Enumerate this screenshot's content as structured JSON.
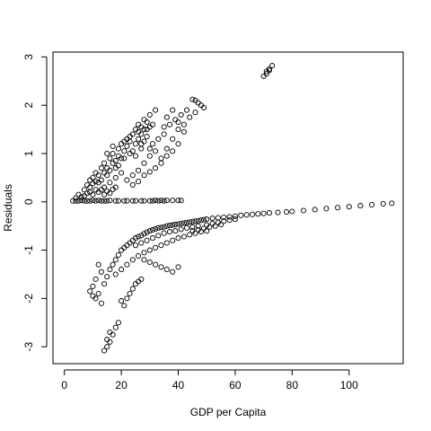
{
  "chart_data": {
    "type": "scatter",
    "title": "",
    "xlabel": "GDP per Capita",
    "ylabel": "Residuals",
    "xlim": [
      -4,
      119
    ],
    "ylim": [
      -3.35,
      3.1
    ],
    "xticks": [
      0,
      20,
      40,
      60,
      80,
      100
    ],
    "yticks": [
      -3,
      -2,
      -1,
      0,
      1,
      2,
      3
    ],
    "xtick_labels": [
      "0",
      "20",
      "40",
      "60",
      "80",
      "100"
    ],
    "ytick_labels": [
      "-3",
      "-2",
      "-1",
      "0",
      "1",
      "2",
      "3"
    ],
    "grid": false,
    "legend": "none",
    "marker": "open-circle",
    "colors": {
      "marker": "#000000",
      "axis": "#000000",
      "background": "#ffffff"
    },
    "series": [
      {
        "points": [
          [
            3,
            0.02
          ],
          [
            5,
            0.02
          ],
          [
            7,
            0.02
          ],
          [
            9,
            0.02
          ],
          [
            11,
            0.02
          ],
          [
            13,
            0.02
          ],
          [
            15,
            0.02
          ],
          [
            18,
            0.02
          ],
          [
            21,
            0.02
          ],
          [
            24,
            0.02
          ],
          [
            27,
            0.02
          ],
          [
            30,
            0.02
          ],
          [
            33,
            0.02
          ],
          [
            35,
            0.02
          ],
          [
            4,
            0.02
          ],
          [
            6,
            0.03
          ],
          [
            8,
            0.02
          ],
          [
            10,
            0.03
          ],
          [
            12,
            0.03
          ],
          [
            14,
            0.02
          ],
          [
            16,
            0.03
          ],
          [
            19,
            0.02
          ],
          [
            22,
            0.02
          ],
          [
            25,
            0.02
          ],
          [
            28,
            0.02
          ],
          [
            31,
            0.02
          ],
          [
            4,
            0.08
          ],
          [
            5,
            0.15
          ],
          [
            6,
            0.1
          ],
          [
            7,
            0.25
          ],
          [
            8,
            0.35
          ],
          [
            9,
            0.2
          ],
          [
            9,
            0.45
          ],
          [
            10,
            0.5
          ],
          [
            11,
            0.6
          ],
          [
            12,
            0.4
          ],
          [
            13,
            0.7
          ],
          [
            14,
            0.8
          ],
          [
            15,
            0.55
          ],
          [
            16,
            0.9
          ],
          [
            17,
            1.0
          ],
          [
            18,
            0.7
          ],
          [
            19,
            1.1
          ],
          [
            20,
            1.2
          ],
          [
            21,
            0.9
          ],
          [
            22,
            1.3
          ],
          [
            23,
            1.0
          ],
          [
            24,
            1.4
          ],
          [
            25,
            1.5
          ],
          [
            26,
            1.6
          ],
          [
            27,
            1.2
          ],
          [
            28,
            1.7
          ],
          [
            29,
            1.5
          ],
          [
            30,
            1.8
          ],
          [
            31,
            1.6
          ],
          [
            32,
            1.9
          ],
          [
            15,
            1.0
          ],
          [
            17,
            1.15
          ],
          [
            19,
            0.75
          ],
          [
            21,
            1.25
          ],
          [
            23,
            1.35
          ],
          [
            25,
            0.95
          ],
          [
            27,
            1.1
          ],
          [
            14,
            0.3
          ],
          [
            16,
            0.4
          ],
          [
            18,
            0.5
          ],
          [
            20,
            0.6
          ],
          [
            22,
            0.45
          ],
          [
            24,
            0.55
          ],
          [
            26,
            0.65
          ],
          [
            28,
            0.8
          ],
          [
            30,
            0.95
          ],
          [
            32,
            1.05
          ],
          [
            34,
            0.9
          ],
          [
            36,
            1.1
          ],
          [
            38,
            1.3
          ],
          [
            40,
            1.5
          ],
          [
            42,
            1.6
          ],
          [
            44,
            1.75
          ],
          [
            46,
            1.85
          ],
          [
            48,
            2.0
          ],
          [
            46,
            2.1
          ],
          [
            47,
            2.05
          ],
          [
            45,
            2.12
          ],
          [
            49,
            1.95
          ],
          [
            35,
            1.4
          ],
          [
            37,
            1.6
          ],
          [
            39,
            1.7
          ],
          [
            41,
            1.8
          ],
          [
            43,
            1.9
          ],
          [
            33,
            1.3
          ],
          [
            35,
            1.55
          ],
          [
            36,
            1.75
          ],
          [
            38,
            1.9
          ],
          [
            40,
            1.65
          ],
          [
            42,
            1.45
          ],
          [
            26,
            1.45
          ],
          [
            27,
            1.55
          ],
          [
            28,
            1.25
          ],
          [
            29,
            1.35
          ],
          [
            30,
            1.1
          ],
          [
            31,
            1.2
          ],
          [
            10,
            0.15
          ],
          [
            11,
            0.25
          ],
          [
            12,
            0.55
          ],
          [
            13,
            0.45
          ],
          [
            14,
            0.6
          ],
          [
            15,
            0.7
          ],
          [
            16,
            0.65
          ],
          [
            17,
            0.8
          ],
          [
            18,
            0.85
          ],
          [
            19,
            0.95
          ],
          [
            20,
            0.9
          ],
          [
            21,
            1.05
          ],
          [
            22,
            1.15
          ],
          [
            23,
            1.25
          ],
          [
            24,
            1.05
          ],
          [
            25,
            1.2
          ],
          [
            26,
            1.3
          ],
          [
            27,
            1.4
          ],
          [
            28,
            1.5
          ],
          [
            29,
            1.65
          ],
          [
            30,
            1.55
          ],
          [
            24,
            0.35
          ],
          [
            26,
            0.42
          ],
          [
            28,
            0.55
          ],
          [
            30,
            0.62
          ],
          [
            32,
            0.7
          ],
          [
            34,
            0.8
          ],
          [
            36,
            0.95
          ],
          [
            38,
            1.05
          ],
          [
            40,
            1.2
          ],
          [
            7,
            0.12
          ],
          [
            8,
            0.18
          ],
          [
            9,
            0.3
          ],
          [
            10,
            0.38
          ],
          [
            11,
            0.42
          ],
          [
            12,
            0.2
          ],
          [
            13,
            0.25
          ],
          [
            14,
            0.15
          ],
          [
            15,
            0.22
          ],
          [
            16,
            0.18
          ],
          [
            17,
            0.26
          ],
          [
            18,
            0.3
          ],
          [
            32,
            0.03
          ],
          [
            34,
            0.03
          ],
          [
            36,
            0.03
          ],
          [
            38,
            0.03
          ],
          [
            40,
            0.03
          ],
          [
            41,
            0.03
          ],
          [
            70,
            2.6
          ],
          [
            71,
            2.7
          ],
          [
            72,
            2.75
          ],
          [
            73,
            2.82
          ],
          [
            71,
            2.65
          ],
          [
            72,
            2.72
          ],
          [
            12,
            -1.3
          ],
          [
            13,
            -1.45
          ],
          [
            11,
            -1.6
          ],
          [
            10,
            -1.75
          ],
          [
            9,
            -1.85
          ],
          [
            12,
            -1.9
          ],
          [
            11,
            -2.0
          ],
          [
            13,
            -2.1
          ],
          [
            10,
            -1.95
          ],
          [
            14,
            -1.7
          ],
          [
            15,
            -1.55
          ],
          [
            16,
            -1.4
          ],
          [
            17,
            -1.3
          ],
          [
            18,
            -1.2
          ],
          [
            19,
            -1.1
          ],
          [
            20,
            -1.0
          ],
          [
            21,
            -0.95
          ],
          [
            22,
            -0.9
          ],
          [
            23,
            -0.85
          ],
          [
            24,
            -0.8
          ],
          [
            25,
            -0.75
          ],
          [
            26,
            -0.72
          ],
          [
            27,
            -0.7
          ],
          [
            28,
            -0.66
          ],
          [
            29,
            -0.63
          ],
          [
            30,
            -0.6
          ],
          [
            31,
            -0.58
          ],
          [
            32,
            -0.56
          ],
          [
            33,
            -0.54
          ],
          [
            34,
            -0.53
          ],
          [
            35,
            -0.52
          ],
          [
            36,
            -0.5
          ],
          [
            37,
            -0.49
          ],
          [
            38,
            -0.48
          ],
          [
            39,
            -0.47
          ],
          [
            40,
            -0.46
          ],
          [
            41,
            -0.45
          ],
          [
            42,
            -0.44
          ],
          [
            43,
            -0.43
          ],
          [
            44,
            -0.42
          ],
          [
            45,
            -0.41
          ],
          [
            46,
            -0.4
          ],
          [
            47,
            -0.39
          ],
          [
            48,
            -0.38
          ],
          [
            49,
            -0.37
          ],
          [
            50,
            -0.36
          ],
          [
            52,
            -0.34
          ],
          [
            54,
            -0.33
          ],
          [
            56,
            -0.32
          ],
          [
            58,
            -0.31
          ],
          [
            60,
            -0.3
          ],
          [
            62,
            -0.28
          ],
          [
            64,
            -0.27
          ],
          [
            66,
            -0.26
          ],
          [
            68,
            -0.25
          ],
          [
            70,
            -0.24
          ],
          [
            72,
            -0.23
          ],
          [
            75,
            -0.22
          ],
          [
            78,
            -0.21
          ],
          [
            80,
            -0.2
          ],
          [
            84,
            -0.18
          ],
          [
            88,
            -0.16
          ],
          [
            92,
            -0.14
          ],
          [
            96,
            -0.12
          ],
          [
            100,
            -0.1
          ],
          [
            104,
            -0.08
          ],
          [
            108,
            -0.06
          ],
          [
            112,
            -0.04
          ],
          [
            115,
            -0.03
          ],
          [
            25,
            -0.9
          ],
          [
            27,
            -0.85
          ],
          [
            29,
            -0.8
          ],
          [
            31,
            -0.75
          ],
          [
            33,
            -0.7
          ],
          [
            35,
            -0.65
          ],
          [
            37,
            -0.62
          ],
          [
            39,
            -0.6
          ],
          [
            41,
            -0.57
          ],
          [
            43,
            -0.54
          ],
          [
            45,
            -0.52
          ],
          [
            47,
            -0.5
          ],
          [
            28,
            -1.05
          ],
          [
            30,
            -1.0
          ],
          [
            32,
            -0.95
          ],
          [
            34,
            -0.9
          ],
          [
            36,
            -0.85
          ],
          [
            38,
            -0.8
          ],
          [
            40,
            -0.75
          ],
          [
            42,
            -0.72
          ],
          [
            44,
            -0.68
          ],
          [
            46,
            -0.65
          ],
          [
            48,
            -0.62
          ],
          [
            50,
            -0.6
          ],
          [
            18,
            -1.5
          ],
          [
            20,
            -1.4
          ],
          [
            22,
            -1.3
          ],
          [
            24,
            -1.2
          ],
          [
            26,
            -1.12
          ],
          [
            28,
            -1.2
          ],
          [
            30,
            -1.25
          ],
          [
            32,
            -1.3
          ],
          [
            34,
            -1.35
          ],
          [
            36,
            -1.4
          ],
          [
            38,
            -1.45
          ],
          [
            40,
            -1.35
          ],
          [
            20,
            -2.05
          ],
          [
            21,
            -2.15
          ],
          [
            22,
            -2.0
          ],
          [
            23,
            -1.9
          ],
          [
            24,
            -1.8
          ],
          [
            25,
            -1.7
          ],
          [
            26,
            -1.65
          ],
          [
            27,
            -1.6
          ],
          [
            14,
            -3.08
          ],
          [
            15,
            -3.0
          ],
          [
            16,
            -2.9
          ],
          [
            17,
            -2.75
          ],
          [
            18,
            -2.6
          ],
          [
            19,
            -2.5
          ],
          [
            15,
            -2.85
          ],
          [
            16,
            -2.7
          ],
          [
            50,
            -0.48
          ],
          [
            52,
            -0.45
          ],
          [
            54,
            -0.43
          ],
          [
            56,
            -0.4
          ],
          [
            58,
            -0.38
          ],
          [
            60,
            -0.36
          ],
          [
            45,
            -0.6
          ],
          [
            47,
            -0.58
          ],
          [
            49,
            -0.55
          ],
          [
            51,
            -0.52
          ],
          [
            53,
            -0.5
          ],
          [
            55,
            -0.47
          ]
        ]
      }
    ]
  }
}
